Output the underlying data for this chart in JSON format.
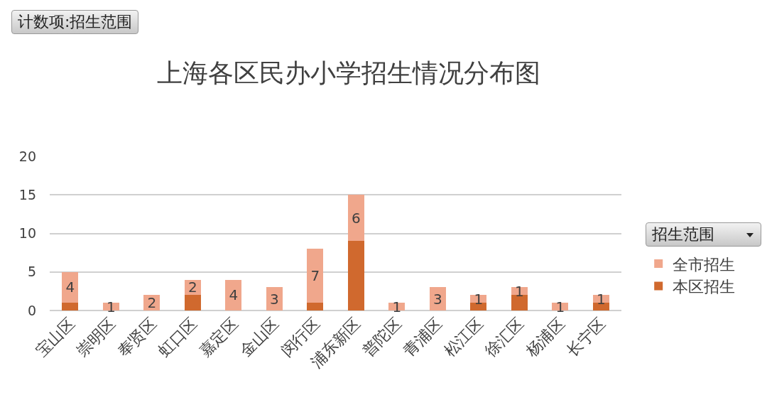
{
  "chart_data": {
    "type": "bar",
    "title": "上海各区民办小学招生情况分布图",
    "annotations": [
      "计数项:招生范围"
    ],
    "legend_title": "招生范围",
    "categories": [
      "宝山区",
      "崇明区",
      "奉贤区",
      "虹口区",
      "嘉定区",
      "金山区",
      "闵行区",
      "浦东新区",
      "普陀区",
      "青浦区",
      "松江区",
      "徐汇区",
      "杨浦区",
      "长宁区"
    ],
    "series": [
      {
        "name": "本区招生",
        "color": "#d0692e",
        "values": [
          1,
          0,
          0,
          2,
          0,
          0,
          1,
          9,
          0,
          0,
          1,
          2,
          0,
          1
        ],
        "value_labels": [
          null,
          null,
          null,
          null,
          null,
          null,
          null,
          null,
          null,
          null,
          null,
          null,
          null,
          null
        ]
      },
      {
        "name": "全市招生",
        "color": "#f0a78c",
        "values": [
          4,
          1,
          2,
          2,
          4,
          3,
          7,
          6,
          1,
          3,
          1,
          1,
          1,
          1
        ],
        "value_labels": [
          "4",
          "1",
          "2",
          "2",
          "4",
          "3",
          "7",
          "6",
          "1",
          "3",
          "1",
          "1",
          "1",
          "1"
        ]
      }
    ],
    "stacked": true,
    "ylim": [
      0,
      20
    ],
    "yticks": [
      0,
      5,
      10,
      15,
      20
    ],
    "grid": "y",
    "legend": "right"
  }
}
